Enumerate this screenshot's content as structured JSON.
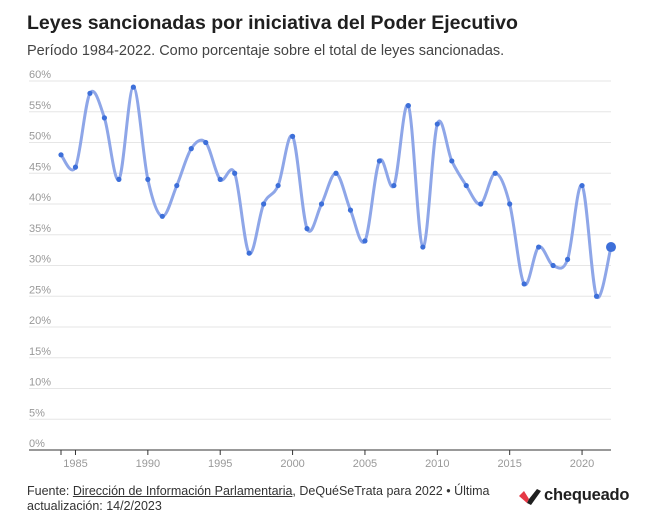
{
  "header": {
    "title": "Leyes sancionadas por iniciativa del Poder Ejecutivo",
    "subtitle": "Período 1984-2022. Como porcentaje sobre el total de leyes sancionadas."
  },
  "footer": {
    "prefix": "Fuente: ",
    "link": "Dirección de Información Parlamentaria",
    "suffix": ", DeQuéSeTrata para 2022 • Última actualización: 14/2/2023",
    "brand": "chequeado"
  },
  "colors": {
    "line": "#8ea6e8",
    "point": "#3d6fd9",
    "grid": "#e6e6e6",
    "axis": "#333333",
    "tick_text": "#999999",
    "logo_red": "#e63946",
    "logo_dark": "#1f1f1f"
  },
  "chart_data": {
    "type": "line",
    "x": [
      1984,
      1985,
      1986,
      1987,
      1988,
      1989,
      1990,
      1991,
      1992,
      1993,
      1994,
      1995,
      1996,
      1997,
      1998,
      1999,
      2000,
      2001,
      2002,
      2003,
      2004,
      2005,
      2006,
      2007,
      2008,
      2009,
      2010,
      2011,
      2012,
      2013,
      2014,
      2015,
      2016,
      2017,
      2018,
      2019,
      2020,
      2021,
      2022
    ],
    "series": [
      {
        "values": [
          48,
          46,
          58,
          54,
          44,
          59,
          44,
          38,
          43,
          49,
          50,
          44,
          45,
          32,
          40,
          43,
          51,
          36,
          40,
          45,
          39,
          34,
          47,
          43,
          56,
          33,
          53,
          47,
          43,
          40,
          45,
          40,
          27,
          33,
          30,
          31,
          43,
          25,
          33
        ]
      }
    ],
    "xlim": [
      1984,
      2022
    ],
    "ylim": [
      0,
      60
    ],
    "xticks": [
      1985,
      1990,
      1995,
      2000,
      2005,
      2010,
      2015,
      2020
    ],
    "yticks": [
      0,
      5,
      10,
      15,
      20,
      25,
      30,
      35,
      40,
      45,
      50,
      55,
      60
    ],
    "ytick_suffix": "%",
    "grid": true,
    "xlabel": "",
    "ylabel": ""
  }
}
